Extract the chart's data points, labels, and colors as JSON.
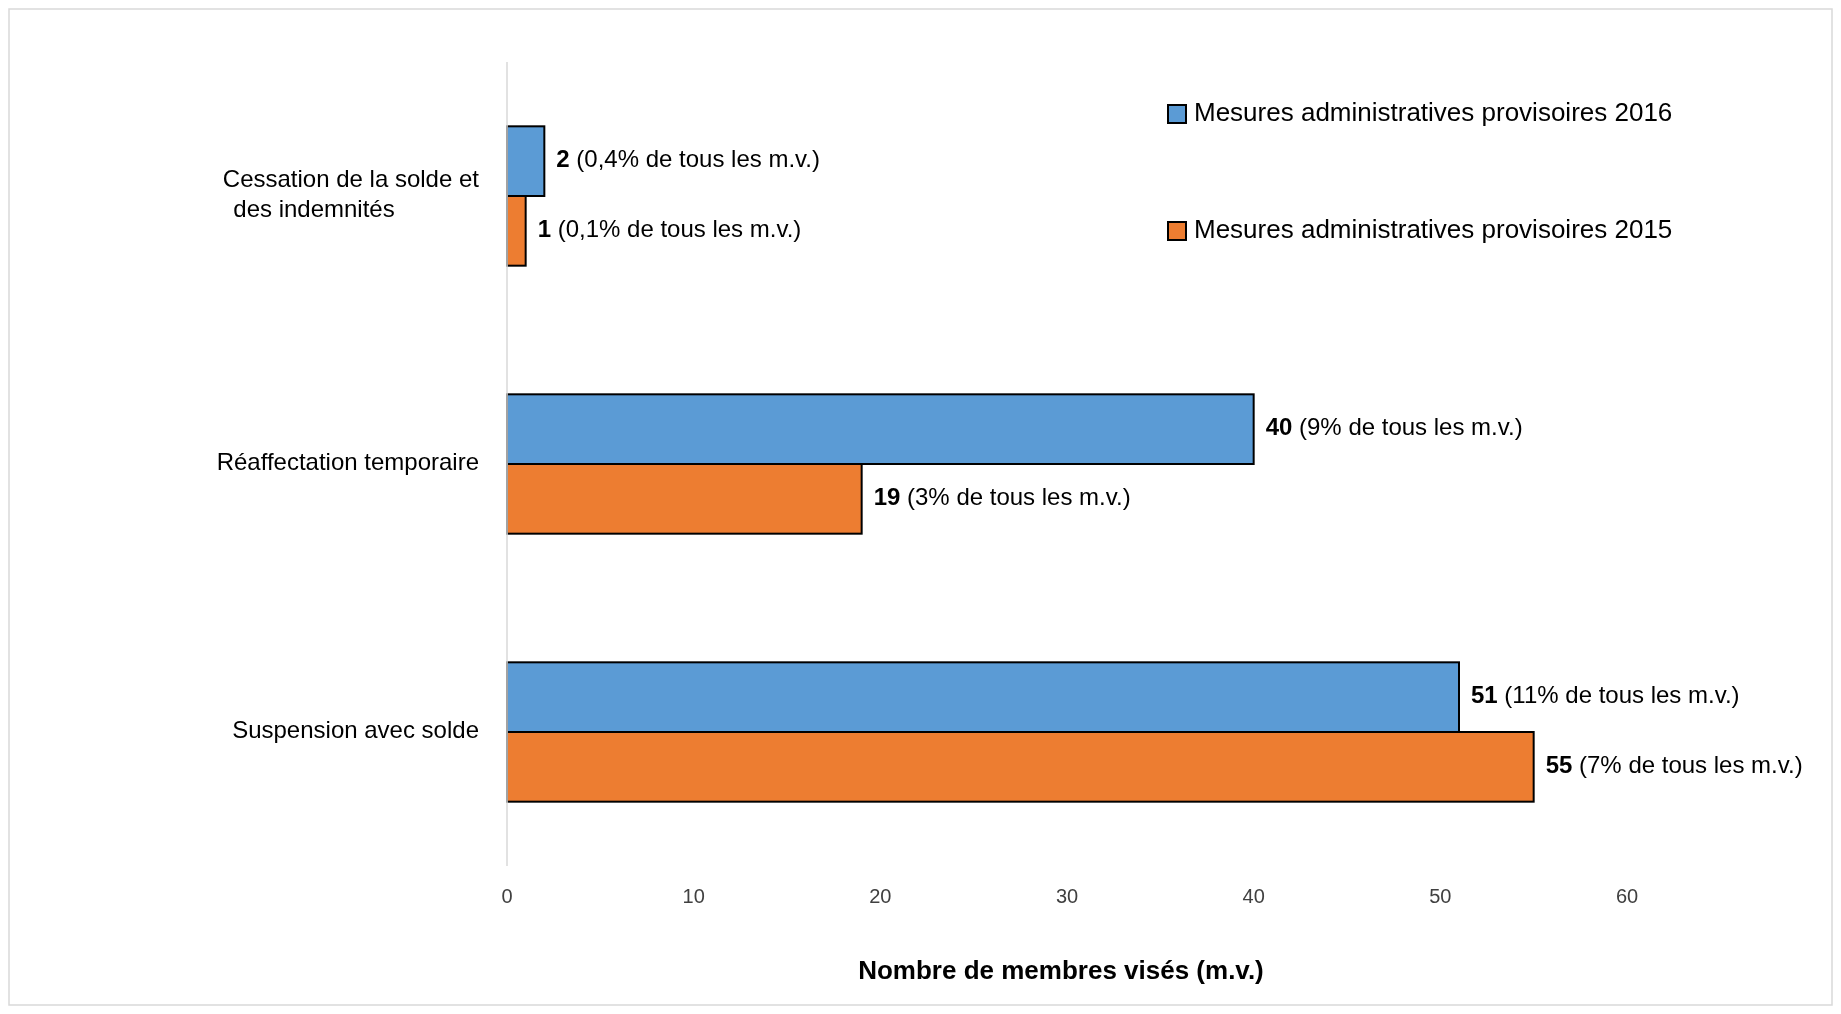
{
  "chart_data": {
    "type": "bar",
    "orientation": "horizontal",
    "xlabel": "Nombre de membres visés (m.v.)",
    "categories": [
      "Cessation de la solde et des indemnités",
      "Réaffectation temporaire",
      "Suspension avec solde"
    ],
    "series": [
      {
        "name": "Mesures administratives provisoires 2016",
        "color": "#5b9bd5",
        "values": [
          2,
          40,
          51
        ],
        "value_labels": [
          "2 (0,4% de tous les m.v.)",
          "40 (9% de tous les m.v.)",
          "51 (11% de tous les m.v.)"
        ]
      },
      {
        "name": "Mesures administratives provisoires 2015",
        "color": "#ed7d31",
        "values": [
          1,
          19,
          55
        ],
        "value_labels": [
          "1 (0,1% de tous les m.v.)",
          "19 (3% de tous les m.v.)",
          "55 (7% de tous les m.v.)"
        ]
      }
    ],
    "xlim": [
      0,
      60
    ],
    "xticks": [
      0,
      10,
      20,
      30,
      40,
      50,
      60
    ],
    "grid": false,
    "legend": "top right"
  }
}
